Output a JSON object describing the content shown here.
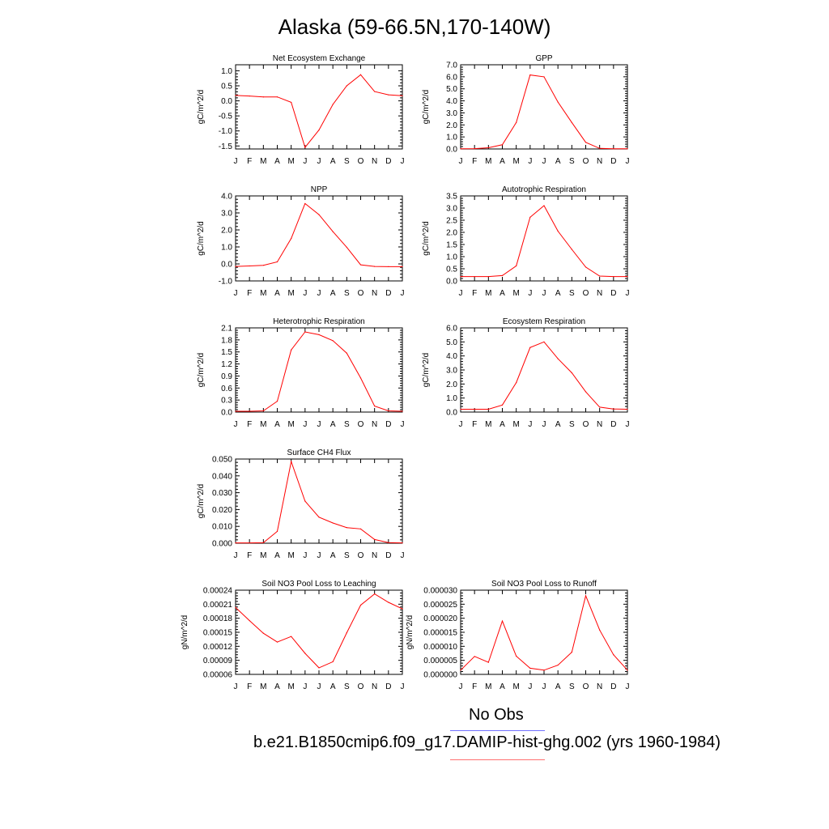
{
  "title": "Alaska (59-66.5N,170-140W)",
  "colors": {
    "model_line": "#ff0000",
    "obs_legend_line": "#7070ff",
    "model_legend_line": "#ff7070",
    "axis": "#000000"
  },
  "legend": {
    "obs_label": "No Obs",
    "model_label": "b.e21.B1850cmip6.f09_g17.DAMIP-hist-ghg.002 (yrs 1960-1984)"
  },
  "chart_data": [
    {
      "type": "line",
      "title": "Net Ecosystem Exchange",
      "ylabel": "gC/m^2/d",
      "xlabel": "",
      "categories": [
        "J",
        "F",
        "M",
        "A",
        "M",
        "J",
        "J",
        "A",
        "S",
        "O",
        "N",
        "D",
        "J"
      ],
      "ylim": [
        -1.6,
        1.2
      ],
      "yticks": [
        "1.0",
        "0.5",
        "0.0",
        "-0.5",
        "-1.0",
        "-1.5"
      ],
      "series": [
        {
          "values": [
            0.18,
            0.16,
            0.13,
            0.13,
            -0.05,
            -1.55,
            -0.97,
            -0.12,
            0.5,
            0.87,
            0.31,
            0.2,
            0.17
          ]
        }
      ]
    },
    {
      "type": "line",
      "title": "GPP",
      "ylabel": "gC/m^2/d",
      "xlabel": "",
      "categories": [
        "J",
        "F",
        "M",
        "A",
        "M",
        "J",
        "J",
        "A",
        "S",
        "O",
        "N",
        "D",
        "J"
      ],
      "ylim": [
        0.0,
        7.0
      ],
      "yticks": [
        "7.0",
        "6.0",
        "5.0",
        "4.0",
        "3.0",
        "2.0",
        "1.0",
        "0.0"
      ],
      "series": [
        {
          "values": [
            0.02,
            0.03,
            0.1,
            0.35,
            2.2,
            6.15,
            6.0,
            3.9,
            2.2,
            0.55,
            0.05,
            0.02,
            0.02
          ]
        }
      ]
    },
    {
      "type": "line",
      "title": "NPP",
      "ylabel": "gC/m^2/d",
      "xlabel": "",
      "categories": [
        "J",
        "F",
        "M",
        "A",
        "M",
        "J",
        "J",
        "A",
        "S",
        "O",
        "N",
        "D",
        "J"
      ],
      "ylim": [
        -1.0,
        4.0
      ],
      "yticks": [
        "4.0",
        "3.0",
        "2.0",
        "1.0",
        "0.0",
        "-1.0"
      ],
      "series": [
        {
          "values": [
            -0.15,
            -0.12,
            -0.08,
            0.12,
            1.5,
            3.55,
            2.9,
            1.9,
            0.98,
            -0.05,
            -0.15,
            -0.16,
            -0.16
          ]
        }
      ]
    },
    {
      "type": "line",
      "title": "Autotrophic Respiration",
      "ylabel": "gC/m^2/d",
      "xlabel": "",
      "categories": [
        "J",
        "F",
        "M",
        "A",
        "M",
        "J",
        "J",
        "A",
        "S",
        "O",
        "N",
        "D",
        "J"
      ],
      "ylim": [
        0.0,
        3.5
      ],
      "yticks": [
        "3.5",
        "3.0",
        "2.5",
        "2.0",
        "1.5",
        "1.0",
        "0.5",
        "0.0"
      ],
      "series": [
        {
          "values": [
            0.18,
            0.18,
            0.18,
            0.22,
            0.62,
            2.62,
            3.1,
            2.05,
            1.3,
            0.57,
            0.2,
            0.18,
            0.18
          ]
        }
      ]
    },
    {
      "type": "line",
      "title": "Heterotrophic Respiration",
      "ylabel": "gC/m^2/d",
      "xlabel": "",
      "categories": [
        "J",
        "F",
        "M",
        "A",
        "M",
        "J",
        "J",
        "A",
        "S",
        "O",
        "N",
        "D",
        "J"
      ],
      "ylim": [
        0.0,
        2.1
      ],
      "yticks": [
        "2.1",
        "1.8",
        "1.5",
        "1.2",
        "0.9",
        "0.6",
        "0.3",
        "0.0"
      ],
      "series": [
        {
          "values": [
            0.02,
            0.02,
            0.03,
            0.27,
            1.55,
            2.0,
            1.93,
            1.78,
            1.47,
            0.85,
            0.15,
            0.03,
            0.02
          ]
        }
      ]
    },
    {
      "type": "line",
      "title": "Ecosystem Respiration",
      "ylabel": "gC/m^2/d",
      "xlabel": "",
      "categories": [
        "J",
        "F",
        "M",
        "A",
        "M",
        "J",
        "J",
        "A",
        "S",
        "O",
        "N",
        "D",
        "J"
      ],
      "ylim": [
        0.0,
        6.0
      ],
      "yticks": [
        "6.0",
        "5.0",
        "4.0",
        "3.0",
        "2.0",
        "1.0",
        "0.0"
      ],
      "series": [
        {
          "values": [
            0.2,
            0.2,
            0.2,
            0.5,
            2.1,
            4.6,
            5.0,
            3.8,
            2.8,
            1.45,
            0.35,
            0.22,
            0.2
          ]
        }
      ]
    },
    {
      "type": "line",
      "title": "Surface CH4 Flux",
      "ylabel": "gC/m^2/d",
      "xlabel": "",
      "categories": [
        "J",
        "F",
        "M",
        "A",
        "M",
        "J",
        "J",
        "A",
        "S",
        "O",
        "N",
        "D",
        "J"
      ],
      "ylim": [
        0.0,
        0.05
      ],
      "yticks": [
        "0.050",
        "0.040",
        "0.030",
        "0.020",
        "0.010",
        "0.000"
      ],
      "series": [
        {
          "values": [
            0.0002,
            0.0002,
            0.0003,
            0.007,
            0.0485,
            0.025,
            0.0155,
            0.012,
            0.0093,
            0.0085,
            0.0022,
            0.0004,
            0.0002
          ]
        }
      ]
    },
    {
      "type": "line",
      "title": "Soil NO3 Pool Loss to Leaching",
      "ylabel": "gN/m^2/d",
      "xlabel": "",
      "categories": [
        "J",
        "F",
        "M",
        "A",
        "M",
        "J",
        "J",
        "A",
        "S",
        "O",
        "N",
        "D",
        "J"
      ],
      "ylim": [
        6e-05,
        0.00024
      ],
      "yticks": [
        "0.00024",
        "0.00021",
        "0.00018",
        "0.00015",
        "0.00012",
        "0.00009",
        "0.00006"
      ],
      "series": [
        {
          "values": [
            0.000203,
            0.000175,
            0.000148,
            0.000129,
            0.000141,
            0.000105,
            7.4e-05,
            8.7e-05,
            0.000149,
            0.000208,
            0.000232,
            0.000214,
            0.0002
          ]
        }
      ]
    },
    {
      "type": "line",
      "title": "Soil NO3 Pool Loss to Runoff",
      "ylabel": "gN/m^2/d",
      "xlabel": "",
      "categories": [
        "J",
        "F",
        "M",
        "A",
        "M",
        "J",
        "J",
        "A",
        "S",
        "O",
        "N",
        "D",
        "J"
      ],
      "ylim": [
        0.0,
        3e-05
      ],
      "yticks": [
        "0.000030",
        "0.000025",
        "0.000020",
        "0.000015",
        "0.000010",
        "0.000005",
        "0.000000"
      ],
      "series": [
        {
          "values": [
            1.5e-06,
            6.4e-06,
            4.3e-06,
            1.9e-05,
            6.5e-06,
            2.2e-06,
            1.5e-06,
            3.3e-06,
            7.9e-06,
            2.8e-05,
            1.58e-05,
            7e-06,
            1.5e-06
          ]
        }
      ]
    }
  ]
}
